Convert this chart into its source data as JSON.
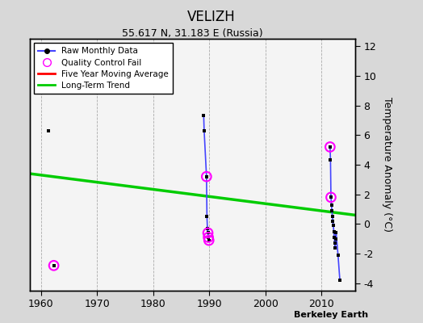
{
  "title": "VELIZH",
  "subtitle": "55.617 N, 31.183 E (Russia)",
  "ylabel": "Temperature Anomaly (°C)",
  "credit": "Berkeley Earth",
  "ylim": [
    -4.5,
    12.5
  ],
  "xlim": [
    1958,
    2016
  ],
  "xticks": [
    1960,
    1970,
    1980,
    1990,
    2000,
    2010
  ],
  "yticks": [
    -4,
    -2,
    0,
    2,
    4,
    6,
    8,
    10,
    12
  ],
  "background_color": "#d8d8d8",
  "plot_background": "#f4f4f4",
  "raw_x": [
    1961.3,
    1962.3,
    1989.0,
    1989.08,
    1989.5,
    1989.58,
    1989.66,
    1989.75,
    1989.83,
    1989.92,
    2011.5,
    2011.58,
    2011.66,
    2011.75,
    2011.83,
    2011.92,
    2012.0,
    2012.08,
    2012.17,
    2012.25,
    2012.33,
    2012.42,
    2012.5,
    2012.58,
    2012.92,
    2013.25
  ],
  "raw_y": [
    6.3,
    -2.8,
    7.3,
    6.3,
    3.2,
    0.5,
    -0.3,
    -0.6,
    -0.9,
    -1.1,
    5.2,
    4.3,
    1.8,
    1.3,
    0.9,
    0.5,
    0.2,
    -0.1,
    -0.5,
    -0.9,
    -1.3,
    -1.6,
    -1.0,
    -0.6,
    -2.1,
    -3.8
  ],
  "qc_fail_x": [
    1962.3,
    1989.5,
    1989.75,
    1989.83,
    1989.92,
    2011.5,
    2011.66
  ],
  "qc_fail_y": [
    -2.8,
    3.2,
    -0.6,
    -0.9,
    -1.1,
    5.2,
    1.8
  ],
  "trend_x": [
    1958,
    2016
  ],
  "trend_y": [
    3.4,
    0.6
  ],
  "raw_color": "#4444ff",
  "qc_color": "#ff00ff",
  "trend_color": "#00cc00",
  "moving_avg_color": "#ff0000",
  "cluster_1989_x": [
    1989.0,
    1989.08,
    1989.5,
    1989.58,
    1989.66,
    1989.75,
    1989.83,
    1989.92
  ],
  "cluster_1989_y": [
    7.3,
    6.3,
    3.2,
    0.5,
    -0.3,
    -0.6,
    -0.9,
    -1.1
  ],
  "cluster_2011_x": [
    2011.5,
    2011.58,
    2011.66,
    2011.75,
    2011.83,
    2011.92,
    2012.0,
    2012.08,
    2012.17,
    2012.25,
    2012.33,
    2012.42,
    2012.5,
    2012.58,
    2012.92,
    2013.25
  ],
  "cluster_2011_y": [
    5.2,
    4.3,
    1.8,
    1.3,
    0.9,
    0.5,
    0.2,
    -0.1,
    -0.5,
    -0.9,
    -1.3,
    -1.6,
    -1.0,
    -0.6,
    -2.1,
    -3.8
  ]
}
